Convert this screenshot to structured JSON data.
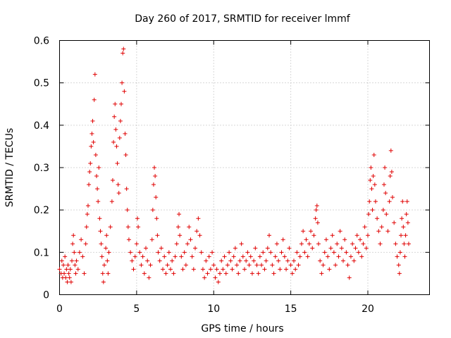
{
  "chart_data": {
    "type": "scatter",
    "title": "Day 260 of 2017, SRMTID for receiver lmmf",
    "xlabel": "GPS time / hours",
    "ylabel": "SRMTID / TECUs",
    "xlim": [
      0,
      24
    ],
    "ylim": [
      0,
      0.6
    ],
    "xticks": [
      0,
      5,
      10,
      15,
      20
    ],
    "xtick_labels": [
      "0",
      "5",
      "10",
      "15",
      "20"
    ],
    "yticks": [
      0,
      0.1,
      0.2,
      0.3,
      0.4,
      0.5,
      0.6
    ],
    "ytick_labels": [
      "0",
      "0.1",
      "0.2",
      "0.3",
      "0.4",
      "0.5",
      "0.6"
    ],
    "grid": true,
    "marker": "+",
    "color": "#e00000",
    "series": [
      {
        "name": "SRMTID",
        "points": [
          [
            0.0,
            0.06
          ],
          [
            0.1,
            0.05
          ],
          [
            0.15,
            0.08
          ],
          [
            0.2,
            0.04
          ],
          [
            0.25,
            0.07
          ],
          [
            0.3,
            0.05
          ],
          [
            0.35,
            0.09
          ],
          [
            0.4,
            0.04
          ],
          [
            0.45,
            0.06
          ],
          [
            0.5,
            0.03
          ],
          [
            0.55,
            0.07
          ],
          [
            0.6,
            0.05
          ],
          [
            0.65,
            0.04
          ],
          [
            0.7,
            0.06
          ],
          [
            0.75,
            0.03
          ],
          [
            0.8,
            0.08
          ],
          [
            0.85,
            0.12
          ],
          [
            0.9,
            0.14
          ],
          [
            0.95,
            0.1
          ],
          [
            1.0,
            0.07
          ],
          [
            1.05,
            0.05
          ],
          [
            1.1,
            0.08
          ],
          [
            1.2,
            0.06
          ],
          [
            1.3,
            0.1
          ],
          [
            1.4,
            0.13
          ],
          [
            1.5,
            0.09
          ],
          [
            1.6,
            0.05
          ],
          [
            1.7,
            0.12
          ],
          [
            1.75,
            0.16
          ],
          [
            1.8,
            0.19
          ],
          [
            1.85,
            0.21
          ],
          [
            1.9,
            0.26
          ],
          [
            1.95,
            0.29
          ],
          [
            2.0,
            0.31
          ],
          [
            2.05,
            0.35
          ],
          [
            2.1,
            0.38
          ],
          [
            2.15,
            0.41
          ],
          [
            2.2,
            0.36
          ],
          [
            2.25,
            0.46
          ],
          [
            2.3,
            0.52
          ],
          [
            2.35,
            0.33
          ],
          [
            2.4,
            0.28
          ],
          [
            2.45,
            0.25
          ],
          [
            2.5,
            0.22
          ],
          [
            2.55,
            0.3
          ],
          [
            2.6,
            0.18
          ],
          [
            2.65,
            0.15
          ],
          [
            2.7,
            0.12
          ],
          [
            2.75,
            0.09
          ],
          [
            2.8,
            0.05
          ],
          [
            2.85,
            0.03
          ],
          [
            2.9,
            0.07
          ],
          [
            3.0,
            0.11
          ],
          [
            3.05,
            0.14
          ],
          [
            3.1,
            0.08
          ],
          [
            3.15,
            0.05
          ],
          [
            3.2,
            0.1
          ],
          [
            3.3,
            0.16
          ],
          [
            3.4,
            0.22
          ],
          [
            3.45,
            0.27
          ],
          [
            3.5,
            0.36
          ],
          [
            3.55,
            0.42
          ],
          [
            3.6,
            0.45
          ],
          [
            3.65,
            0.39
          ],
          [
            3.7,
            0.35
          ],
          [
            3.75,
            0.31
          ],
          [
            3.8,
            0.26
          ],
          [
            3.85,
            0.24
          ],
          [
            3.9,
            0.37
          ],
          [
            3.95,
            0.41
          ],
          [
            4.0,
            0.45
          ],
          [
            4.05,
            0.5
          ],
          [
            4.1,
            0.57
          ],
          [
            4.15,
            0.58
          ],
          [
            4.2,
            0.48
          ],
          [
            4.25,
            0.38
          ],
          [
            4.3,
            0.33
          ],
          [
            4.35,
            0.25
          ],
          [
            4.4,
            0.2
          ],
          [
            4.45,
            0.16
          ],
          [
            4.5,
            0.13
          ],
          [
            4.6,
            0.1
          ],
          [
            4.7,
            0.08
          ],
          [
            4.8,
            0.06
          ],
          [
            4.9,
            0.09
          ],
          [
            5.0,
            0.12
          ],
          [
            5.05,
            0.18
          ],
          [
            5.1,
            0.16
          ],
          [
            5.2,
            0.1
          ],
          [
            5.3,
            0.07
          ],
          [
            5.4,
            0.09
          ],
          [
            5.5,
            0.05
          ],
          [
            5.6,
            0.11
          ],
          [
            5.7,
            0.08
          ],
          [
            5.8,
            0.04
          ],
          [
            5.9,
            0.07
          ],
          [
            6.0,
            0.13
          ],
          [
            6.05,
            0.2
          ],
          [
            6.1,
            0.26
          ],
          [
            6.15,
            0.3
          ],
          [
            6.2,
            0.28
          ],
          [
            6.25,
            0.23
          ],
          [
            6.3,
            0.18
          ],
          [
            6.35,
            0.14
          ],
          [
            6.4,
            0.1
          ],
          [
            6.5,
            0.08
          ],
          [
            6.6,
            0.11
          ],
          [
            6.7,
            0.06
          ],
          [
            6.8,
            0.09
          ],
          [
            6.9,
            0.05
          ],
          [
            7.0,
            0.07
          ],
          [
            7.1,
            0.1
          ],
          [
            7.2,
            0.06
          ],
          [
            7.3,
            0.08
          ],
          [
            7.4,
            0.05
          ],
          [
            7.5,
            0.09
          ],
          [
            7.6,
            0.12
          ],
          [
            7.7,
            0.16
          ],
          [
            7.75,
            0.19
          ],
          [
            7.8,
            0.14
          ],
          [
            7.9,
            0.09
          ],
          [
            8.0,
            0.06
          ],
          [
            8.1,
            0.1
          ],
          [
            8.2,
            0.07
          ],
          [
            8.3,
            0.12
          ],
          [
            8.4,
            0.16
          ],
          [
            8.5,
            0.13
          ],
          [
            8.6,
            0.09
          ],
          [
            8.7,
            0.06
          ],
          [
            8.8,
            0.11
          ],
          [
            8.9,
            0.15
          ],
          [
            9.0,
            0.18
          ],
          [
            9.1,
            0.14
          ],
          [
            9.2,
            0.1
          ],
          [
            9.3,
            0.06
          ],
          [
            9.4,
            0.04
          ],
          [
            9.5,
            0.08
          ],
          [
            9.6,
            0.05
          ],
          [
            9.7,
            0.09
          ],
          [
            9.8,
            0.06
          ],
          [
            9.9,
            0.1
          ],
          [
            10.0,
            0.07
          ],
          [
            10.1,
            0.04
          ],
          [
            10.2,
            0.06
          ],
          [
            10.3,
            0.03
          ],
          [
            10.4,
            0.05
          ],
          [
            10.5,
            0.08
          ],
          [
            10.6,
            0.06
          ],
          [
            10.7,
            0.09
          ],
          [
            10.8,
            0.05
          ],
          [
            10.9,
            0.07
          ],
          [
            11.0,
            0.1
          ],
          [
            11.1,
            0.08
          ],
          [
            11.2,
            0.06
          ],
          [
            11.3,
            0.09
          ],
          [
            11.4,
            0.11
          ],
          [
            11.5,
            0.07
          ],
          [
            11.6,
            0.05
          ],
          [
            11.7,
            0.08
          ],
          [
            11.8,
            0.12
          ],
          [
            11.9,
            0.09
          ],
          [
            12.0,
            0.06
          ],
          [
            12.1,
            0.08
          ],
          [
            12.2,
            0.1
          ],
          [
            12.3,
            0.07
          ],
          [
            12.4,
            0.09
          ],
          [
            12.5,
            0.05
          ],
          [
            12.6,
            0.08
          ],
          [
            12.7,
            0.11
          ],
          [
            12.8,
            0.07
          ],
          [
            12.9,
            0.05
          ],
          [
            13.0,
            0.09
          ],
          [
            13.1,
            0.07
          ],
          [
            13.2,
            0.1
          ],
          [
            13.3,
            0.06
          ],
          [
            13.4,
            0.08
          ],
          [
            13.5,
            0.11
          ],
          [
            13.6,
            0.14
          ],
          [
            13.7,
            0.1
          ],
          [
            13.8,
            0.07
          ],
          [
            13.9,
            0.05
          ],
          [
            14.0,
            0.09
          ],
          [
            14.1,
            0.12
          ],
          [
            14.2,
            0.08
          ],
          [
            14.3,
            0.06
          ],
          [
            14.4,
            0.1
          ],
          [
            14.5,
            0.13
          ],
          [
            14.6,
            0.09
          ],
          [
            14.7,
            0.06
          ],
          [
            14.8,
            0.08
          ],
          [
            14.9,
            0.11
          ],
          [
            15.0,
            0.07
          ],
          [
            15.1,
            0.05
          ],
          [
            15.2,
            0.08
          ],
          [
            15.3,
            0.06
          ],
          [
            15.4,
            0.1
          ],
          [
            15.5,
            0.07
          ],
          [
            15.6,
            0.09
          ],
          [
            15.7,
            0.12
          ],
          [
            15.8,
            0.15
          ],
          [
            15.9,
            0.1
          ],
          [
            16.0,
            0.13
          ],
          [
            16.1,
            0.09
          ],
          [
            16.2,
            0.12
          ],
          [
            16.3,
            0.15
          ],
          [
            16.4,
            0.11
          ],
          [
            16.5,
            0.14
          ],
          [
            16.6,
            0.18
          ],
          [
            16.65,
            0.2
          ],
          [
            16.7,
            0.21
          ],
          [
            16.75,
            0.17
          ],
          [
            16.8,
            0.12
          ],
          [
            16.9,
            0.08
          ],
          [
            17.0,
            0.05
          ],
          [
            17.1,
            0.07
          ],
          [
            17.2,
            0.1
          ],
          [
            17.3,
            0.13
          ],
          [
            17.4,
            0.09
          ],
          [
            17.5,
            0.06
          ],
          [
            17.6,
            0.11
          ],
          [
            17.7,
            0.14
          ],
          [
            17.8,
            0.1
          ],
          [
            17.9,
            0.07
          ],
          [
            18.0,
            0.12
          ],
          [
            18.1,
            0.09
          ],
          [
            18.2,
            0.15
          ],
          [
            18.3,
            0.11
          ],
          [
            18.4,
            0.08
          ],
          [
            18.5,
            0.13
          ],
          [
            18.6,
            0.1
          ],
          [
            18.7,
            0.07
          ],
          [
            18.8,
            0.04
          ],
          [
            18.9,
            0.09
          ],
          [
            19.0,
            0.12
          ],
          [
            19.1,
            0.08
          ],
          [
            19.2,
            0.11
          ],
          [
            19.3,
            0.14
          ],
          [
            19.4,
            0.1
          ],
          [
            19.5,
            0.13
          ],
          [
            19.6,
            0.09
          ],
          [
            19.7,
            0.12
          ],
          [
            19.8,
            0.16
          ],
          [
            19.9,
            0.11
          ],
          [
            20.0,
            0.14
          ],
          [
            20.05,
            0.19
          ],
          [
            20.1,
            0.22
          ],
          [
            20.15,
            0.27
          ],
          [
            20.2,
            0.3
          ],
          [
            20.25,
            0.25
          ],
          [
            20.3,
            0.2
          ],
          [
            20.35,
            0.28
          ],
          [
            20.4,
            0.33
          ],
          [
            20.45,
            0.26
          ],
          [
            20.5,
            0.22
          ],
          [
            20.6,
            0.18
          ],
          [
            20.7,
            0.15
          ],
          [
            20.8,
            0.12
          ],
          [
            20.9,
            0.16
          ],
          [
            21.0,
            0.2
          ],
          [
            21.05,
            0.26
          ],
          [
            21.1,
            0.3
          ],
          [
            21.15,
            0.24
          ],
          [
            21.2,
            0.19
          ],
          [
            21.3,
            0.15
          ],
          [
            21.4,
            0.22
          ],
          [
            21.45,
            0.28
          ],
          [
            21.5,
            0.34
          ],
          [
            21.55,
            0.29
          ],
          [
            21.6,
            0.23
          ],
          [
            21.7,
            0.17
          ],
          [
            21.8,
            0.12
          ],
          [
            21.9,
            0.09
          ],
          [
            22.0,
            0.07
          ],
          [
            22.05,
            0.05
          ],
          [
            22.1,
            0.1
          ],
          [
            22.15,
            0.14
          ],
          [
            22.2,
            0.18
          ],
          [
            22.25,
            0.22
          ],
          [
            22.3,
            0.16
          ],
          [
            22.35,
            0.12
          ],
          [
            22.4,
            0.09
          ],
          [
            22.45,
            0.14
          ],
          [
            22.5,
            0.19
          ],
          [
            22.55,
            0.22
          ],
          [
            22.6,
            0.17
          ],
          [
            22.65,
            0.12
          ]
        ]
      }
    ]
  }
}
